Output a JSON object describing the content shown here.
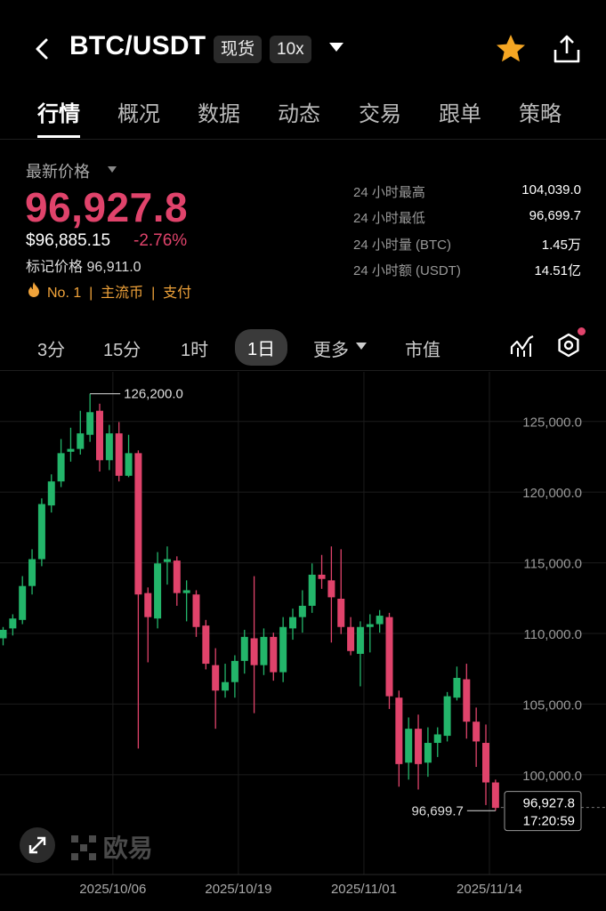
{
  "header": {
    "title": "BTC/USDT",
    "tag_spot": "现货",
    "tag_leverage": "10x",
    "icons": [
      "back-icon",
      "star-icon",
      "share-icon"
    ],
    "star_color": "#f5a623"
  },
  "tabs": [
    {
      "label": "行情",
      "active": true
    },
    {
      "label": "概况"
    },
    {
      "label": "数据"
    },
    {
      "label": "动态"
    },
    {
      "label": "交易"
    },
    {
      "label": "跟单"
    },
    {
      "label": "策略"
    }
  ],
  "price": {
    "latest_label": "最新价格",
    "last": "96,927.8",
    "usd": "$96,885.15",
    "change": "-2.76%",
    "mark_label": "标记价格",
    "mark": "96,911.0",
    "badges": "No. 1  |  主流币  |  支付",
    "down_color": "#e0436b",
    "up_color": "#23b56a"
  },
  "stats": [
    {
      "label": "24 小时最高",
      "value": "104,039.0"
    },
    {
      "label": "24 小时最低",
      "value": "96,699.7"
    },
    {
      "label": "24 小时量 (BTC)",
      "value": "1.45万"
    },
    {
      "label": "24 小时额 (USDT)",
      "value": "14.51亿"
    }
  ],
  "timeframes": {
    "items": [
      "3分",
      "15分",
      "1时",
      "1日"
    ],
    "active": "1日",
    "more": "更多",
    "market_cap": "市值"
  },
  "logo_text": "欧易",
  "chart_data": {
    "type": "candlestick",
    "ylim": [
      92500,
      127500
    ],
    "y_ticks": [
      "125,000.0",
      "120,000.0",
      "115,000.0",
      "110,000.0",
      "105,000.0",
      "100,000.0"
    ],
    "y_tick_values": [
      125000,
      120000,
      115000,
      110000,
      105000,
      100000
    ],
    "x_ticks": [
      "2025/10/06",
      "2025/10/19",
      "2025/11/01",
      "2025/11/14"
    ],
    "high_label": "126,200.0",
    "low_label": "96,699.7",
    "current_price_label": "96,927.8",
    "countdown": "17:20:59",
    "candles": [
      [
        108900,
        109500,
        108400,
        109700
      ],
      [
        109600,
        110300,
        109100,
        110600
      ],
      [
        110200,
        112600,
        109900,
        113300
      ],
      [
        112600,
        114500,
        112000,
        115200
      ],
      [
        114500,
        118400,
        114000,
        118800
      ],
      [
        118300,
        120000,
        117800,
        120500
      ],
      [
        120000,
        122000,
        119600,
        123000
      ],
      [
        122100,
        122300,
        121400,
        123800
      ],
      [
        122300,
        123400,
        121900,
        125000
      ],
      [
        123300,
        124900,
        122800,
        126200
      ],
      [
        125000,
        121500,
        120700,
        125500
      ],
      [
        121500,
        123400,
        120800,
        124000
      ],
      [
        123400,
        120400,
        120000,
        124200
      ],
      [
        120400,
        122000,
        120300,
        123300
      ],
      [
        122000,
        112000,
        101100,
        122200
      ],
      [
        112100,
        110400,
        107200,
        112500
      ],
      [
        110300,
        114200,
        109600,
        115000
      ],
      [
        114300,
        114500,
        112700,
        115400
      ],
      [
        114400,
        112100,
        111200,
        114700
      ],
      [
        112100,
        112300,
        110100,
        113000
      ],
      [
        112000,
        109700,
        109000,
        112300
      ],
      [
        109800,
        107100,
        106700,
        110200
      ],
      [
        107000,
        105200,
        102500,
        108200
      ],
      [
        105200,
        105800,
        104700,
        107100
      ],
      [
        105800,
        107300,
        104700,
        107700
      ],
      [
        107300,
        109000,
        106400,
        109500
      ],
      [
        108900,
        107000,
        103600,
        113300
      ],
      [
        107000,
        109000,
        106300,
        109600
      ],
      [
        109000,
        106500,
        105900,
        109300
      ],
      [
        106500,
        109700,
        105800,
        110400
      ],
      [
        109600,
        110400,
        108800,
        111000
      ],
      [
        110400,
        111200,
        109300,
        112300
      ],
      [
        111200,
        113400,
        110700,
        114200
      ],
      [
        113400,
        113100,
        112400,
        114800
      ],
      [
        113000,
        111800,
        108600,
        115400
      ],
      [
        111700,
        109700,
        109200,
        115200
      ],
      [
        109700,
        108000,
        107700,
        110400
      ],
      [
        107800,
        109700,
        105500,
        110100
      ],
      [
        109700,
        109900,
        107900,
        110600
      ],
      [
        109900,
        110500,
        109300,
        110900
      ],
      [
        110400,
        104800,
        103900,
        110700
      ],
      [
        104700,
        100000,
        98400,
        105200
      ],
      [
        100100,
        102500,
        98900,
        103300
      ],
      [
        102500,
        100000,
        98200,
        103500
      ],
      [
        100100,
        101500,
        99100,
        102600
      ],
      [
        101500,
        102100,
        100500,
        102600
      ],
      [
        102000,
        104800,
        101600,
        105100
      ],
      [
        104700,
        106100,
        104500,
        106900
      ],
      [
        106000,
        103000,
        101800,
        107100
      ],
      [
        103000,
        101600,
        99800,
        104000
      ],
      [
        101500,
        98700,
        97100,
        102800
      ],
      [
        98700,
        96900,
        96700,
        98900
      ]
    ]
  }
}
